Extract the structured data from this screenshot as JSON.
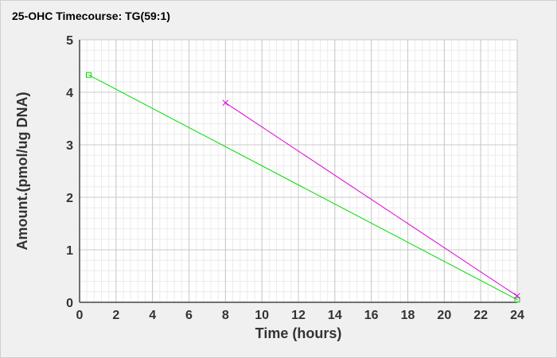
{
  "chart_data": {
    "type": "line",
    "title": "25-OHC Timecourse: TG(59:1)",
    "xlabel": "Time (hours)",
    "ylabel": "Amount.(pmol/ug DNA)",
    "xlim": [
      0,
      24
    ],
    "ylim": [
      0,
      5
    ],
    "xticks": [
      0,
      2,
      4,
      6,
      8,
      10,
      12,
      14,
      16,
      18,
      20,
      22,
      24
    ],
    "yticks": [
      0,
      1,
      2,
      3,
      4,
      5
    ],
    "grid": true,
    "legend": "none",
    "series": [
      {
        "color": "#00dd00",
        "marker": "square",
        "points": [
          {
            "x": 0.5,
            "y": 4.33
          },
          {
            "x": 24,
            "y": 0.05
          }
        ]
      },
      {
        "color": "#dd00dd",
        "marker": "x",
        "points": [
          {
            "x": 8,
            "y": 3.8
          },
          {
            "x": 24,
            "y": 0.12
          }
        ]
      }
    ]
  }
}
